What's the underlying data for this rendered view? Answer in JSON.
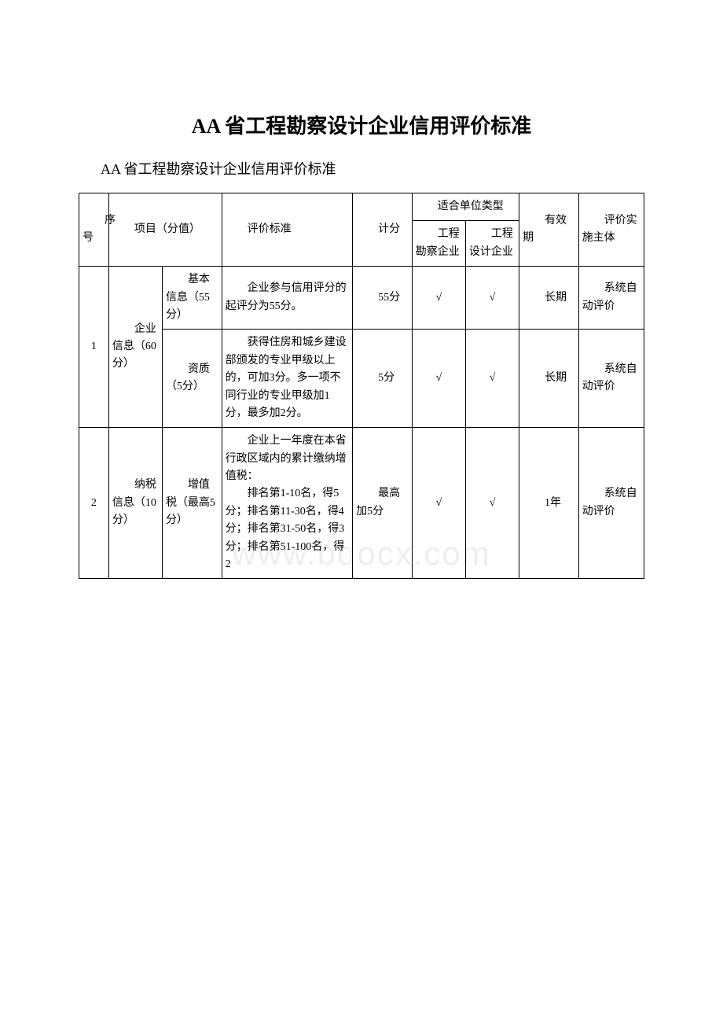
{
  "title": "AA 省工程勘察设计企业信用评价标准",
  "subtitle": "AA 省工程勘察设计企业信用评价标准",
  "watermark": "www.bdocx.com",
  "header": {
    "col_seq": "序号",
    "col_project": "项目（分值）",
    "col_standard": "评价标准",
    "col_score": "计分",
    "col_unit_type": "适合单位类型",
    "col_survey": "工程勘察企业",
    "col_design": "工程设计企业",
    "col_validity": "有效期",
    "col_body": "评价实施主体"
  },
  "rows": [
    {
      "seq": "1",
      "category": "企业信息（60分）",
      "sub": "基本信息（55分）",
      "standard": "企业参与信用评分的起评分为55分。",
      "score": "55分",
      "survey": "√",
      "design": "√",
      "validity": "长期",
      "body": "系统自动评价"
    },
    {
      "sub": "资质（5分）",
      "standard": "获得住房和城乡建设部颁发的专业甲级以上的，可加3分。多一项不同行业的专业甲级加1分，最多加2分。",
      "score": "5分",
      "survey": "√",
      "design": "√",
      "validity": "长期",
      "body": "系统自动评价"
    },
    {
      "seq": "2",
      "category": "纳税信息（10分）",
      "sub": "增值税（最高5分）",
      "standard_p1": "企业上一年度在本省行政区域内的累计缴纳增值税：",
      "standard_p2": "排名第1-10名，得5分；排名第11-30名，得4分；排名第31-50名，得3分；排名第51-100名，得2",
      "score": "最高加5分",
      "survey": "√",
      "design": "√",
      "validity": "1年",
      "body": "系统自动评价"
    }
  ],
  "colwidths": {
    "seq": "5%",
    "cat": "9%",
    "sub": "10%",
    "standard": "22%",
    "score": "10%",
    "survey": "9%",
    "design": "9%",
    "validity": "10%",
    "body": "11%"
  }
}
